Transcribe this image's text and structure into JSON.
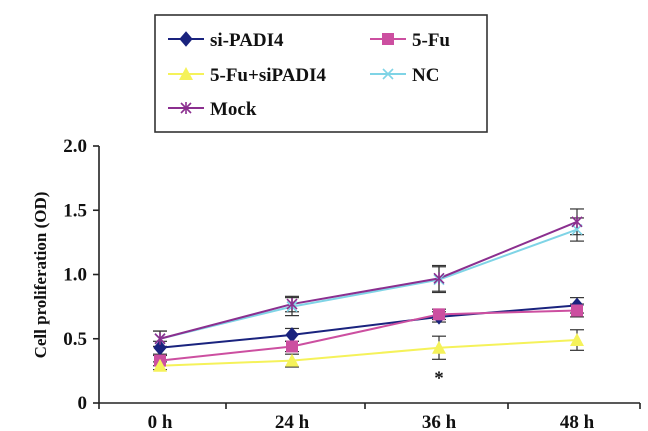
{
  "chart_data": {
    "type": "line",
    "categories": [
      "0 h",
      "24 h",
      "36 h",
      "48 h"
    ],
    "ylabel": "Cell proliferation (OD)",
    "xlabel": "",
    "ylim": [
      0,
      2.0
    ],
    "yticks": [
      "0",
      "0.5",
      "1.0",
      "1.5",
      "2.0"
    ],
    "grid": false,
    "legend_position": "top",
    "annotations": [
      {
        "text": "*",
        "category": "36 h"
      }
    ],
    "series": [
      {
        "name": "si-PADI4",
        "color": "#1a237e",
        "marker": "diamond",
        "values": [
          0.43,
          0.53,
          0.67,
          0.76
        ],
        "errors": [
          0.05,
          0.05,
          0.04,
          0.06
        ]
      },
      {
        "name": "5-Fu",
        "color": "#cc4fa0",
        "marker": "square",
        "values": [
          0.33,
          0.44,
          0.69,
          0.72
        ],
        "errors": [
          0.04,
          0.04,
          0.04,
          0.05
        ]
      },
      {
        "name": "5-Fu+siPADI4",
        "color": "#f5f25a",
        "marker": "triangle",
        "values": [
          0.29,
          0.33,
          0.43,
          0.49
        ],
        "errors": [
          0.03,
          0.05,
          0.09,
          0.08
        ]
      },
      {
        "name": "NC",
        "color": "#7fd4e6",
        "marker": "x",
        "values": [
          0.5,
          0.75,
          0.96,
          1.35
        ],
        "errors": [
          0.06,
          0.07,
          0.1,
          0.09
        ]
      },
      {
        "name": "Mock",
        "color": "#8b2f8f",
        "marker": "star",
        "values": [
          0.5,
          0.77,
          0.97,
          1.41
        ],
        "errors": [
          0.06,
          0.06,
          0.1,
          0.1
        ]
      }
    ]
  }
}
